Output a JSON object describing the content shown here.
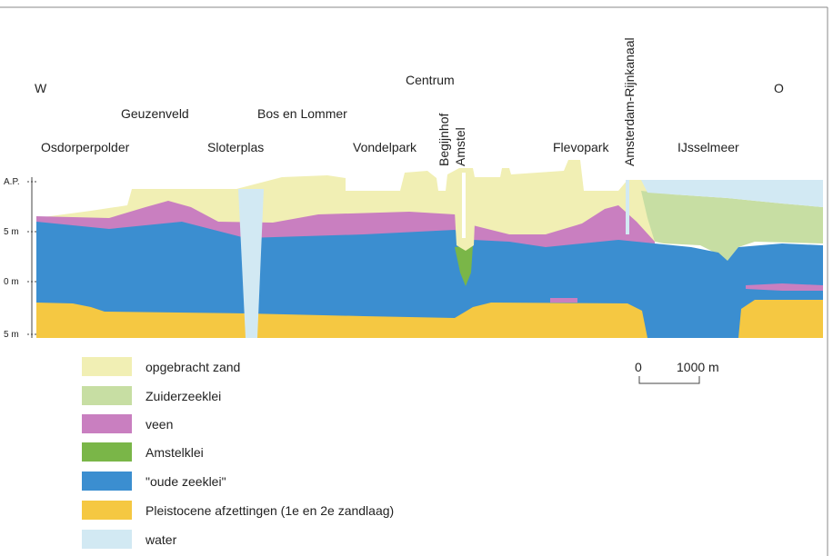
{
  "compass": {
    "west": "W",
    "east": "O"
  },
  "places": [
    "Centrum",
    "Geuzenveld",
    "Bos en Lommer",
    "Osdorperpolder",
    "Sloterplas",
    "Vondelpark",
    "Begijnhof",
    "Amstel",
    "Flevopark",
    "Amsterdam-Rijnkanaal",
    "IJsselmeer"
  ],
  "depth_labels": [
    "A.P.",
    "5 m",
    "0 m",
    "5 m"
  ],
  "legend": [
    "opgebracht zand",
    "Zuiderzeeklei",
    "veen",
    "Amstelklei",
    "\"oude zeeklei\"",
    "Pleistocene afzettingen (1e en 2e zandlaag)",
    "water"
  ],
  "scale": {
    "start": "0",
    "length": "1000 m"
  }
}
